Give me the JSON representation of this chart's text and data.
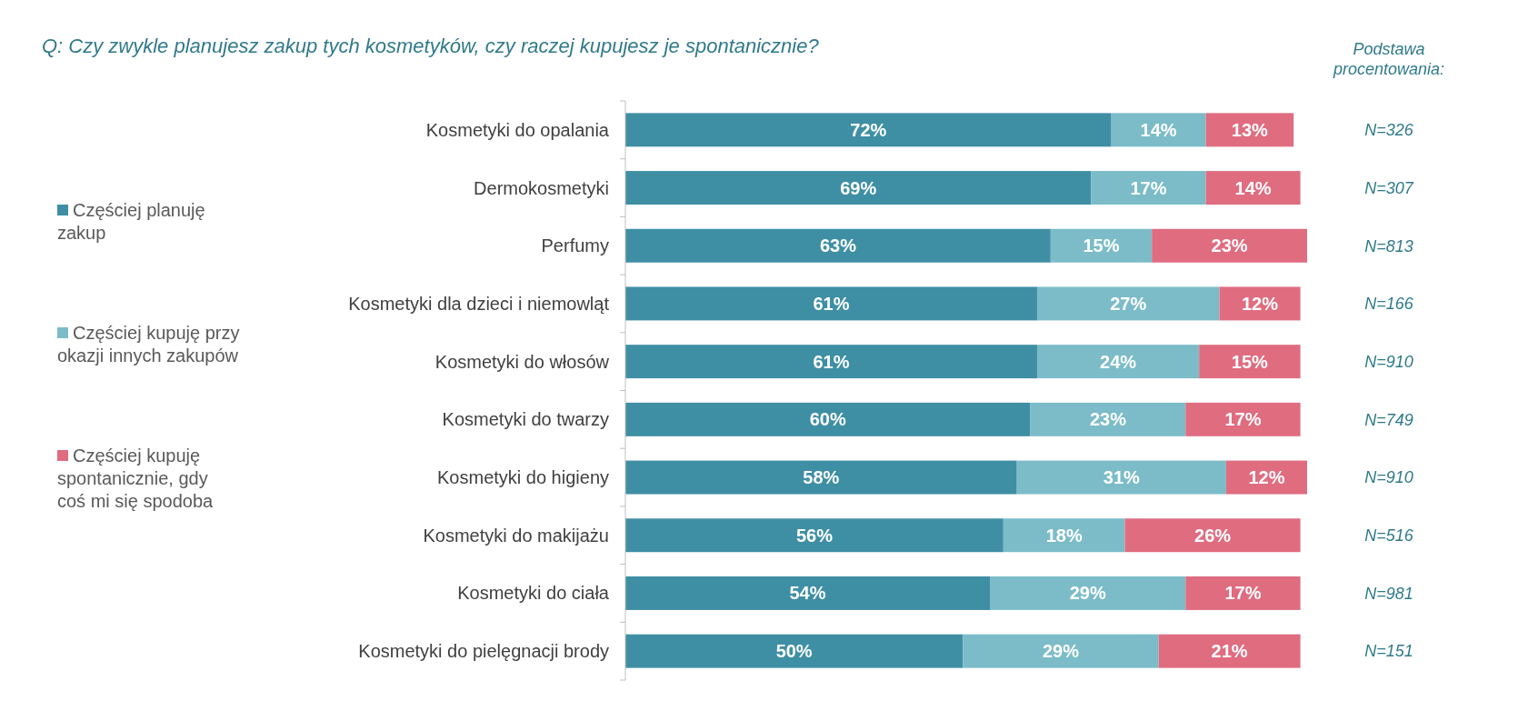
{
  "chart_data": {
    "type": "bar",
    "orientation": "horizontal",
    "stacked": true,
    "title": "Q: Czy zwykle planujesz zakup tych kosmetyków, czy raczej kupujesz je spontanicznie?",
    "categories": [
      "Kosmetyki do opalania",
      "Dermokosmetyki",
      "Perfumy",
      "Kosmetyki dla dzieci i niemowląt",
      "Kosmetyki do włosów",
      "Kosmetyki do twarzy",
      "Kosmetyki do higieny",
      "Kosmetyki do makijażu",
      "Kosmetyki do ciała",
      "Kosmetyki do pielęgnacji brody"
    ],
    "series": [
      {
        "name": "Częściej planuję zakup",
        "color": "#3f8fa4",
        "values": [
          72,
          69,
          63,
          61,
          61,
          60,
          58,
          56,
          54,
          50
        ],
        "value_labels": [
          "72%",
          "69%",
          "63%",
          "61%",
          "61%",
          "60%",
          "58%",
          "56%",
          "54%",
          "50%"
        ]
      },
      {
        "name": "Częściej kupuję przy okazji innych zakupów",
        "color": "#7bbcc8",
        "values": [
          14,
          17,
          15,
          27,
          24,
          23,
          31,
          18,
          29,
          29
        ],
        "value_labels": [
          "14%",
          "17%",
          "15%",
          "27%",
          "24%",
          "23%",
          "31%",
          "18%",
          "29%",
          "29%"
        ]
      },
      {
        "name": "Częściej kupuję spontanicznie, gdy coś mi się spodoba",
        "color": "#e06c80",
        "values": [
          13,
          14,
          23,
          12,
          15,
          17,
          12,
          26,
          17,
          21
        ],
        "value_labels": [
          "13%",
          "14%",
          "23%",
          "12%",
          "15%",
          "17%",
          "12%",
          "26%",
          "17%",
          "21%"
        ]
      }
    ],
    "legend": "left",
    "annotations": [
      "Podstawa procentowania:",
      "N=326",
      "N=307",
      "N=813",
      "N=166",
      "N=910",
      "N=749",
      "N=910",
      "N=516",
      "N=981",
      "N=151"
    ]
  }
}
